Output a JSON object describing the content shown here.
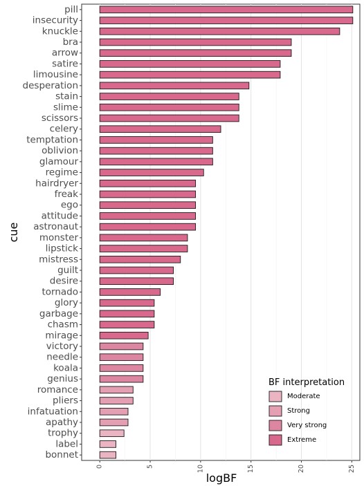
{
  "chart_data": {
    "type": "bar",
    "orientation": "horizontal",
    "xlabel": "logBF",
    "ylabel": "cue",
    "xlim": [
      -1.8,
      25.8
    ],
    "xticks": [
      0,
      5,
      10,
      15,
      20,
      25
    ],
    "grid": "vertical",
    "legend_position": "bottom-right",
    "legend": {
      "title": "BF interpretation",
      "entries": [
        {
          "label": "Moderate",
          "color": "#eab4c3"
        },
        {
          "label": "Strong",
          "color": "#e49fb2"
        },
        {
          "label": "Very strong",
          "color": "#dd86a1"
        },
        {
          "label": "Extreme",
          "color": "#d8698c"
        }
      ]
    },
    "bars": [
      {
        "cue": "pill",
        "value": 25.1,
        "interpretation": "Extreme"
      },
      {
        "cue": "insecurity",
        "value": 25.1,
        "interpretation": "Extreme"
      },
      {
        "cue": "knuckle",
        "value": 23.8,
        "interpretation": "Extreme"
      },
      {
        "cue": "bra",
        "value": 19.0,
        "interpretation": "Extreme"
      },
      {
        "cue": "arrow",
        "value": 19.0,
        "interpretation": "Extreme"
      },
      {
        "cue": "satire",
        "value": 17.9,
        "interpretation": "Extreme"
      },
      {
        "cue": "limousine",
        "value": 17.9,
        "interpretation": "Extreme"
      },
      {
        "cue": "desperation",
        "value": 14.8,
        "interpretation": "Extreme"
      },
      {
        "cue": "stain",
        "value": 13.8,
        "interpretation": "Extreme"
      },
      {
        "cue": "slime",
        "value": 13.8,
        "interpretation": "Extreme"
      },
      {
        "cue": "scissors",
        "value": 13.8,
        "interpretation": "Extreme"
      },
      {
        "cue": "celery",
        "value": 12.0,
        "interpretation": "Extreme"
      },
      {
        "cue": "temptation",
        "value": 11.2,
        "interpretation": "Extreme"
      },
      {
        "cue": "oblivion",
        "value": 11.2,
        "interpretation": "Extreme"
      },
      {
        "cue": "glamour",
        "value": 11.2,
        "interpretation": "Extreme"
      },
      {
        "cue": "regime",
        "value": 10.3,
        "interpretation": "Extreme"
      },
      {
        "cue": "hairdryer",
        "value": 9.5,
        "interpretation": "Extreme"
      },
      {
        "cue": "freak",
        "value": 9.5,
        "interpretation": "Extreme"
      },
      {
        "cue": "ego",
        "value": 9.5,
        "interpretation": "Extreme"
      },
      {
        "cue": "attitude",
        "value": 9.5,
        "interpretation": "Extreme"
      },
      {
        "cue": "astronaut",
        "value": 9.5,
        "interpretation": "Extreme"
      },
      {
        "cue": "monster",
        "value": 8.7,
        "interpretation": "Extreme"
      },
      {
        "cue": "lipstick",
        "value": 8.7,
        "interpretation": "Extreme"
      },
      {
        "cue": "mistress",
        "value": 8.0,
        "interpretation": "Extreme"
      },
      {
        "cue": "guilt",
        "value": 7.3,
        "interpretation": "Extreme"
      },
      {
        "cue": "desire",
        "value": 7.3,
        "interpretation": "Extreme"
      },
      {
        "cue": "tornado",
        "value": 6.0,
        "interpretation": "Extreme"
      },
      {
        "cue": "glory",
        "value": 5.4,
        "interpretation": "Extreme"
      },
      {
        "cue": "garbage",
        "value": 5.4,
        "interpretation": "Extreme"
      },
      {
        "cue": "chasm",
        "value": 5.4,
        "interpretation": "Extreme"
      },
      {
        "cue": "mirage",
        "value": 4.8,
        "interpretation": "Extreme"
      },
      {
        "cue": "victory",
        "value": 4.3,
        "interpretation": "Very strong"
      },
      {
        "cue": "needle",
        "value": 4.3,
        "interpretation": "Very strong"
      },
      {
        "cue": "koala",
        "value": 4.3,
        "interpretation": "Very strong"
      },
      {
        "cue": "genius",
        "value": 4.3,
        "interpretation": "Very strong"
      },
      {
        "cue": "romance",
        "value": 3.3,
        "interpretation": "Strong"
      },
      {
        "cue": "pliers",
        "value": 3.3,
        "interpretation": "Strong"
      },
      {
        "cue": "infatuation",
        "value": 2.8,
        "interpretation": "Strong"
      },
      {
        "cue": "apathy",
        "value": 2.8,
        "interpretation": "Strong"
      },
      {
        "cue": "trophy",
        "value": 2.4,
        "interpretation": "Moderate"
      },
      {
        "cue": "label",
        "value": 1.6,
        "interpretation": "Moderate"
      },
      {
        "cue": "bonnet",
        "value": 1.6,
        "interpretation": "Moderate"
      }
    ]
  }
}
